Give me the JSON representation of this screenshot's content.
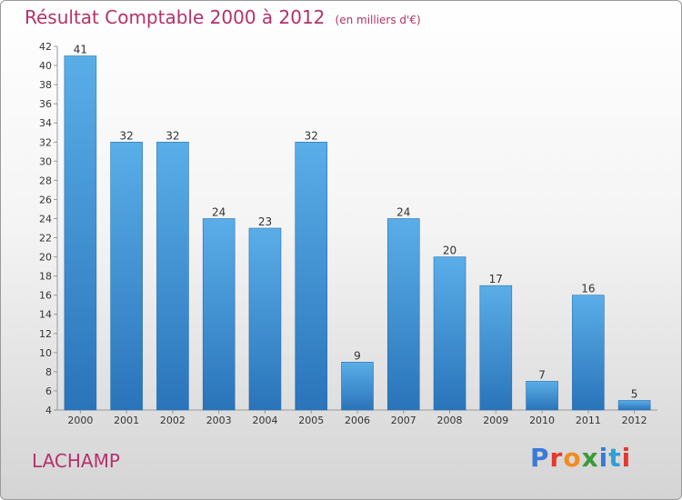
{
  "header": {
    "title": "Résultat Comptable 2000 à 2012",
    "subtitle": "(en milliers d'€)"
  },
  "footer": {
    "place": "LACHAMP",
    "brand": "Proxiti",
    "brand_colors": [
      "#3a7bd5",
      "#e23a2e",
      "#f28c1e",
      "#3a9b3a",
      "#3a7bd5",
      "#2f9fd8",
      "#e23a2e"
    ]
  },
  "chart_data": {
    "type": "bar",
    "title": "Résultat Comptable 2000 à 2012",
    "subtitle": "(en milliers d'€)",
    "categories": [
      "2000",
      "2001",
      "2002",
      "2003",
      "2004",
      "2005",
      "2006",
      "2007",
      "2008",
      "2009",
      "2010",
      "2011",
      "2012"
    ],
    "values": [
      41,
      32,
      32,
      24,
      23,
      32,
      9,
      24,
      20,
      17,
      7,
      16,
      5
    ],
    "ylim": [
      4,
      42
    ],
    "yticks": [
      4,
      6,
      8,
      10,
      12,
      14,
      16,
      18,
      20,
      22,
      24,
      26,
      28,
      30,
      32,
      34,
      36,
      38,
      40,
      42
    ],
    "grid": false,
    "bar_color": "#4e9fe0",
    "bar_color_dark": "#2b78bf"
  }
}
